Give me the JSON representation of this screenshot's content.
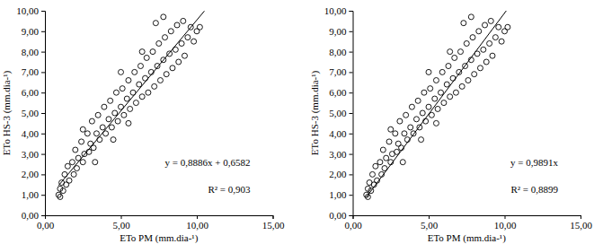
{
  "chart_data": [
    {
      "type": "scatter",
      "color": "#000000",
      "marker": "circle-open",
      "x_label": "ETo PM (mm.dia-¹)",
      "y_label": "ETo HS-3 (mm.dia-¹)",
      "xlim": [
        0,
        15
      ],
      "xticks": [
        {
          "value": 0,
          "label": "0,00"
        },
        {
          "value": 5,
          "label": "5,00"
        },
        {
          "value": 10,
          "label": "10,00"
        },
        {
          "value": 15,
          "label": "15,00"
        }
      ],
      "ylim": [
        0,
        10
      ],
      "yticks": [
        {
          "value": 0,
          "label": "0,00"
        },
        {
          "value": 1,
          "label": "1,00"
        },
        {
          "value": 2,
          "label": "2,00"
        },
        {
          "value": 3,
          "label": "3,00"
        },
        {
          "value": 4,
          "label": "4,00"
        },
        {
          "value": 5,
          "label": "5,00"
        },
        {
          "value": 6,
          "label": "6,00"
        },
        {
          "value": 7,
          "label": "7,00"
        },
        {
          "value": 8,
          "label": "8,00"
        },
        {
          "value": 9,
          "label": "9,00"
        },
        {
          "value": 10,
          "label": "10,00"
        }
      ],
      "grid": false,
      "x": [
        0.9,
        1.0,
        1.0,
        1.1,
        1.2,
        1.3,
        1.4,
        1.5,
        1.6,
        1.8,
        1.9,
        2.0,
        2.1,
        2.2,
        2.4,
        2.5,
        2.6,
        2.8,
        2.9,
        3.0,
        3.1,
        3.2,
        3.4,
        3.5,
        3.6,
        3.8,
        3.9,
        4.0,
        4.2,
        4.3,
        4.4,
        4.6,
        4.7,
        4.8,
        5.0,
        5.1,
        5.2,
        5.4,
        5.5,
        5.6,
        5.8,
        5.9,
        6.0,
        6.2,
        6.3,
        6.4,
        6.6,
        6.7,
        6.8,
        7.0,
        7.1,
        7.2,
        7.4,
        7.5,
        7.6,
        7.8,
        7.9,
        8.0,
        8.2,
        8.3,
        8.4,
        8.6,
        8.7,
        8.8,
        9.0,
        9.1,
        9.2,
        9.4,
        9.6,
        9.8,
        10.0,
        10.2,
        6.4,
        7.3,
        7.8,
        4.5,
        5.5,
        3.3,
        2.5,
        5.0
      ],
      "values": [
        1.0,
        1.3,
        0.9,
        1.6,
        1.2,
        2.0,
        1.5,
        2.4,
        1.7,
        2.6,
        2.0,
        3.2,
        2.3,
        2.8,
        3.6,
        2.6,
        3.0,
        4.0,
        3.1,
        3.5,
        4.6,
        3.3,
        4.0,
        4.9,
        3.7,
        4.3,
        5.3,
        4.0,
        4.7,
        5.6,
        4.3,
        5.0,
        6.0,
        4.6,
        5.3,
        6.2,
        4.9,
        5.7,
        6.6,
        5.2,
        6.0,
        7.0,
        5.5,
        6.4,
        7.3,
        5.8,
        6.7,
        7.7,
        6.0,
        7.0,
        8.0,
        6.3,
        7.3,
        8.4,
        6.6,
        7.6,
        8.7,
        6.9,
        7.9,
        9.0,
        7.2,
        8.1,
        9.3,
        7.5,
        8.4,
        9.5,
        7.8,
        8.7,
        9.2,
        8.5,
        9.0,
        9.2,
        8.0,
        9.4,
        9.7,
        3.7,
        4.5,
        2.6,
        4.2,
        7.0
      ],
      "trendline": {
        "slope": 0.8886,
        "intercept": 0.6582,
        "x_range": [
          0.9,
          10.5
        ]
      },
      "annotations": [
        "y = 0,8886x + 0,6582",
        "R² = 0,903"
      ]
    },
    {
      "type": "scatter",
      "color": "#000000",
      "marker": "circle-open",
      "x_label": "ETo PM (mm.dia-¹)",
      "y_label": "ETo HS-3 (mm.dia-¹)",
      "xlim": [
        0,
        15
      ],
      "xticks": [
        {
          "value": 0,
          "label": "0,00"
        },
        {
          "value": 5,
          "label": "5,00"
        },
        {
          "value": 10,
          "label": "10,00"
        },
        {
          "value": 15,
          "label": "15,00"
        }
      ],
      "ylim": [
        0,
        10
      ],
      "yticks": [
        {
          "value": 0,
          "label": "0,00"
        },
        {
          "value": 1,
          "label": "1,00"
        },
        {
          "value": 2,
          "label": "2,00"
        },
        {
          "value": 3,
          "label": "3,00"
        },
        {
          "value": 4,
          "label": "4,00"
        },
        {
          "value": 5,
          "label": "5,00"
        },
        {
          "value": 6,
          "label": "6,00"
        },
        {
          "value": 7,
          "label": "7,00"
        },
        {
          "value": 8,
          "label": "8,00"
        },
        {
          "value": 9,
          "label": "9,00"
        },
        {
          "value": 10,
          "label": "10,00"
        }
      ],
      "grid": false,
      "x": [
        0.9,
        1.0,
        1.0,
        1.1,
        1.2,
        1.3,
        1.4,
        1.5,
        1.6,
        1.8,
        1.9,
        2.0,
        2.1,
        2.2,
        2.4,
        2.5,
        2.6,
        2.8,
        2.9,
        3.0,
        3.1,
        3.2,
        3.4,
        3.5,
        3.6,
        3.8,
        3.9,
        4.0,
        4.2,
        4.3,
        4.4,
        4.6,
        4.7,
        4.8,
        5.0,
        5.1,
        5.2,
        5.4,
        5.5,
        5.6,
        5.8,
        5.9,
        6.0,
        6.2,
        6.3,
        6.4,
        6.6,
        6.7,
        6.8,
        7.0,
        7.1,
        7.2,
        7.4,
        7.5,
        7.6,
        7.8,
        7.9,
        8.0,
        8.2,
        8.3,
        8.4,
        8.6,
        8.7,
        8.8,
        9.0,
        9.1,
        9.2,
        9.4,
        9.6,
        9.8,
        10.0,
        10.2,
        6.4,
        7.3,
        7.8,
        4.5,
        5.5,
        3.3,
        2.5,
        5.0
      ],
      "values": [
        1.0,
        1.3,
        0.9,
        1.6,
        1.2,
        2.0,
        1.5,
        2.4,
        1.7,
        2.6,
        2.0,
        3.2,
        2.3,
        2.8,
        3.6,
        2.6,
        3.0,
        4.0,
        3.1,
        3.5,
        4.6,
        3.3,
        4.0,
        4.9,
        3.7,
        4.3,
        5.3,
        4.0,
        4.7,
        5.6,
        4.3,
        5.0,
        6.0,
        4.6,
        5.3,
        6.2,
        4.9,
        5.7,
        6.6,
        5.2,
        6.0,
        7.0,
        5.5,
        6.4,
        7.3,
        5.8,
        6.7,
        7.7,
        6.0,
        7.0,
        8.0,
        6.3,
        7.3,
        8.4,
        6.6,
        7.6,
        8.7,
        6.9,
        7.9,
        9.0,
        7.2,
        8.1,
        9.3,
        7.5,
        8.4,
        9.5,
        7.8,
        8.7,
        9.2,
        8.5,
        9.0,
        9.2,
        8.0,
        9.4,
        9.7,
        3.7,
        4.5,
        2.6,
        4.2,
        7.0
      ],
      "trendline": {
        "slope": 0.9891,
        "intercept": 0,
        "x_range": [
          0.9,
          10.2
        ]
      },
      "annotations": [
        "y = 0,9891x",
        "R² = 0,8899"
      ]
    }
  ]
}
